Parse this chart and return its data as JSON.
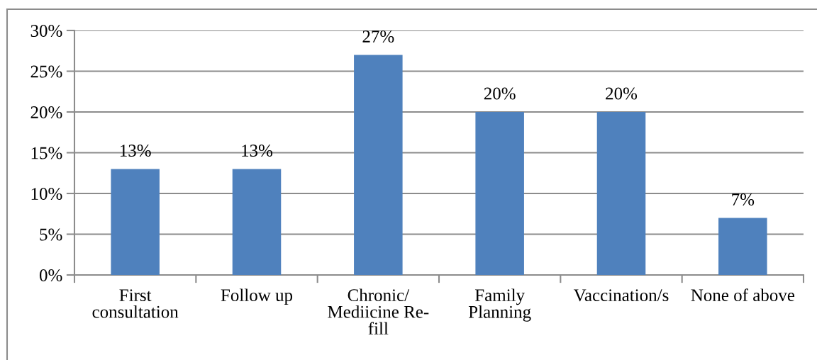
{
  "chart_data": {
    "type": "bar",
    "categories": [
      "First\nconsultation",
      "Follow up",
      "Chronic/\nMediicine Re-\nfill",
      "Family\nPlanning",
      "Vaccination/s",
      "None of above"
    ],
    "values": [
      13,
      13,
      27,
      20,
      20,
      7
    ],
    "value_labels": [
      "13%",
      "13%",
      "27%",
      "20%",
      "20%",
      "7%"
    ],
    "color": "#4f81bd",
    "ylim": [
      0,
      30
    ],
    "yticks": [
      {
        "value": 0,
        "label": "0%"
      },
      {
        "value": 5,
        "label": "5%"
      },
      {
        "value": 10,
        "label": "10%"
      },
      {
        "value": 15,
        "label": "15%"
      },
      {
        "value": 20,
        "label": "20%"
      },
      {
        "value": 25,
        "label": "25%"
      },
      {
        "value": 30,
        "label": "30%"
      }
    ],
    "grid": "y"
  }
}
